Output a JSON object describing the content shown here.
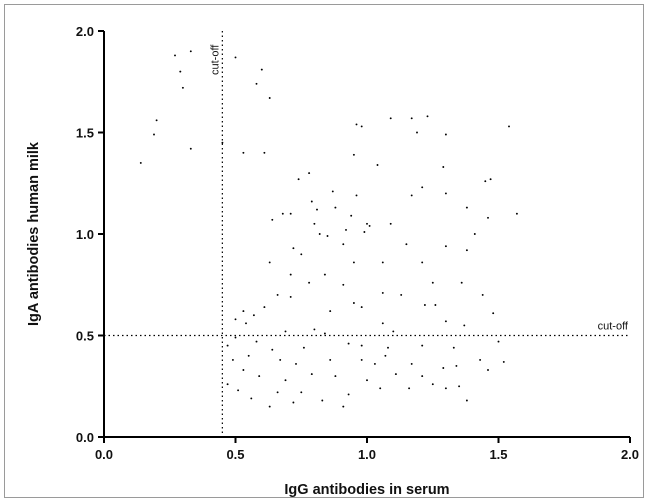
{
  "chart_data": {
    "type": "scatter",
    "xlabel": "IgG antibodies in serum",
    "ylabel": "IgA antibodies human milk",
    "xlim": [
      0.0,
      2.0
    ],
    "ylim": [
      0.0,
      2.0
    ],
    "x_ticks": [
      "0.0",
      "0.5",
      "1.0",
      "1.5",
      "2.0"
    ],
    "y_ticks": [
      "0.0",
      "0.5",
      "1.0",
      "1.5",
      "2.0"
    ],
    "grid": false,
    "point_color": "#000000",
    "cutoffs": {
      "x": 0.45,
      "y": 0.5,
      "x_label": "cut-off",
      "y_label": "cut-off"
    },
    "points": [
      [
        0.27,
        1.88
      ],
      [
        0.29,
        1.8
      ],
      [
        0.33,
        1.9
      ],
      [
        0.5,
        1.87
      ],
      [
        0.6,
        1.81
      ],
      [
        0.63,
        1.67
      ],
      [
        0.58,
        1.74
      ],
      [
        0.2,
        1.56
      ],
      [
        0.19,
        1.49
      ],
      [
        0.14,
        1.35
      ],
      [
        0.33,
        1.42
      ],
      [
        0.3,
        1.72
      ],
      [
        0.45,
        1.45
      ],
      [
        0.61,
        1.4
      ],
      [
        0.53,
        1.4
      ],
      [
        0.96,
        1.54
      ],
      [
        0.98,
        1.53
      ],
      [
        1.09,
        1.57
      ],
      [
        1.17,
        1.57
      ],
      [
        1.19,
        1.5
      ],
      [
        1.23,
        1.58
      ],
      [
        1.3,
        1.49
      ],
      [
        1.54,
        1.53
      ],
      [
        0.78,
        1.3
      ],
      [
        0.74,
        1.27
      ],
      [
        0.95,
        1.39
      ],
      [
        1.04,
        1.34
      ],
      [
        1.29,
        1.33
      ],
      [
        1.47,
        1.27
      ],
      [
        1.45,
        1.26
      ],
      [
        1.57,
        1.1
      ],
      [
        0.87,
        1.21
      ],
      [
        1.21,
        1.23
      ],
      [
        1.17,
        1.19
      ],
      [
        0.94,
        1.09
      ],
      [
        0.88,
        1.13
      ],
      [
        0.96,
        1.19
      ],
      [
        1.09,
        1.05
      ],
      [
        1.38,
        1.13
      ],
      [
        1.46,
        1.08
      ],
      [
        1.3,
        1.2
      ],
      [
        0.68,
        1.1
      ],
      [
        0.71,
        1.1
      ],
      [
        0.64,
        1.07
      ],
      [
        0.79,
        1.16
      ],
      [
        0.81,
        1.12
      ],
      [
        0.8,
        1.05
      ],
      [
        0.92,
        1.02
      ],
      [
        0.99,
        1.01
      ],
      [
        1.0,
        1.05
      ],
      [
        1.01,
        1.04
      ],
      [
        0.82,
        1.0
      ],
      [
        0.85,
        0.99
      ],
      [
        0.91,
        0.95
      ],
      [
        1.15,
        0.95
      ],
      [
        1.3,
        0.94
      ],
      [
        1.38,
        0.92
      ],
      [
        1.41,
        1.0
      ],
      [
        0.72,
        0.93
      ],
      [
        0.75,
        0.9
      ],
      [
        0.63,
        0.86
      ],
      [
        0.71,
        0.8
      ],
      [
        0.78,
        0.76
      ],
      [
        0.84,
        0.8
      ],
      [
        0.95,
        0.86
      ],
      [
        1.06,
        0.86
      ],
      [
        1.21,
        0.86
      ],
      [
        1.25,
        0.76
      ],
      [
        1.36,
        0.76
      ],
      [
        1.44,
        0.7
      ],
      [
        1.06,
        0.71
      ],
      [
        1.13,
        0.7
      ],
      [
        1.22,
        0.65
      ],
      [
        1.26,
        0.65
      ],
      [
        0.91,
        0.75
      ],
      [
        0.95,
        0.66
      ],
      [
        0.98,
        0.64
      ],
      [
        0.86,
        0.62
      ],
      [
        0.66,
        0.7
      ],
      [
        0.71,
        0.69
      ],
      [
        0.61,
        0.64
      ],
      [
        0.57,
        0.6
      ],
      [
        0.53,
        0.62
      ],
      [
        0.5,
        0.58
      ],
      [
        0.54,
        0.56
      ],
      [
        1.3,
        0.57
      ],
      [
        1.37,
        0.55
      ],
      [
        1.48,
        0.61
      ],
      [
        1.06,
        0.56
      ],
      [
        1.1,
        0.52
      ],
      [
        0.8,
        0.53
      ],
      [
        0.84,
        0.51
      ],
      [
        0.69,
        0.52
      ],
      [
        0.93,
        0.46
      ],
      [
        0.98,
        0.45
      ],
      [
        1.08,
        0.44
      ],
      [
        1.21,
        0.45
      ],
      [
        1.33,
        0.44
      ],
      [
        1.5,
        0.47
      ],
      [
        0.76,
        0.44
      ],
      [
        0.64,
        0.43
      ],
      [
        0.58,
        0.47
      ],
      [
        0.55,
        0.4
      ],
      [
        0.67,
        0.38
      ],
      [
        0.73,
        0.36
      ],
      [
        0.86,
        0.38
      ],
      [
        0.98,
        0.38
      ],
      [
        1.03,
        0.36
      ],
      [
        1.07,
        0.4
      ],
      [
        1.17,
        0.36
      ],
      [
        1.29,
        0.34
      ],
      [
        1.34,
        0.35
      ],
      [
        1.43,
        0.38
      ],
      [
        1.52,
        0.37
      ],
      [
        1.46,
        0.33
      ],
      [
        0.59,
        0.3
      ],
      [
        0.69,
        0.28
      ],
      [
        0.79,
        0.31
      ],
      [
        0.88,
        0.3
      ],
      [
        1.0,
        0.28
      ],
      [
        1.11,
        0.31
      ],
      [
        1.21,
        0.3
      ],
      [
        1.25,
        0.26
      ],
      [
        1.35,
        0.25
      ],
      [
        0.66,
        0.22
      ],
      [
        0.75,
        0.22
      ],
      [
        0.83,
        0.18
      ],
      [
        0.93,
        0.21
      ],
      [
        1.05,
        0.24
      ],
      [
        1.16,
        0.24
      ],
      [
        1.3,
        0.24
      ],
      [
        0.51,
        0.23
      ],
      [
        0.56,
        0.19
      ],
      [
        0.63,
        0.15
      ],
      [
        0.72,
        0.17
      ],
      [
        0.91,
        0.15
      ],
      [
        1.38,
        0.18
      ],
      [
        0.53,
        0.33
      ],
      [
        0.47,
        0.26
      ],
      [
        0.49,
        0.38
      ],
      [
        0.47,
        0.45
      ],
      [
        0.5,
        0.49
      ]
    ]
  }
}
